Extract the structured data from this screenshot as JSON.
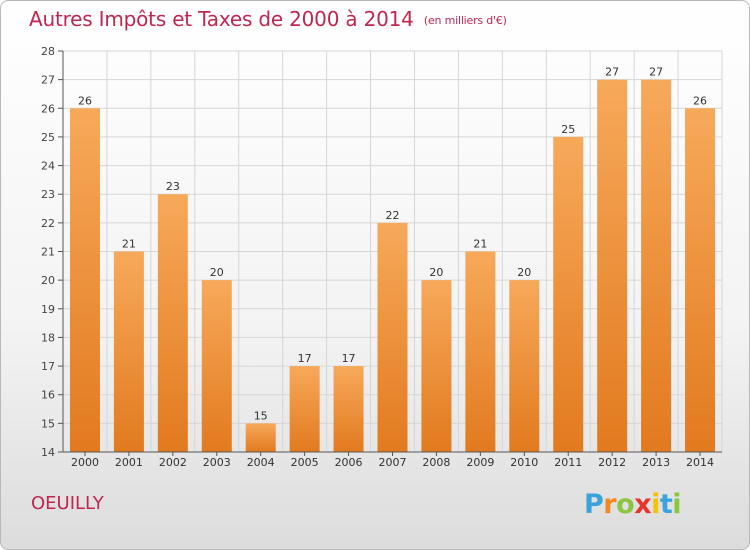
{
  "title": "Autres Impôts et Taxes de 2000 à 2014",
  "subtitle": "(en milliers d'€)",
  "commune": "OEUILLY",
  "logo": {
    "letters": [
      "P",
      "r",
      "o",
      "x",
      "i",
      "t",
      "i"
    ],
    "colors": [
      "#3aa3dc",
      "#f08a1d",
      "#8cc63f",
      "#e8322c",
      "#f5c200",
      "#3aa3dc",
      "#8cc63f"
    ]
  },
  "colors": {
    "accent": "#c1264f",
    "bar_light": "#f7a95a",
    "bar_dark": "#e27a1f",
    "axis": "#555555"
  },
  "chart_data": {
    "type": "bar",
    "categories": [
      "2000",
      "2001",
      "2002",
      "2003",
      "2004",
      "2005",
      "2006",
      "2007",
      "2008",
      "2009",
      "2010",
      "2011",
      "2012",
      "2013",
      "2014"
    ],
    "values": [
      26,
      21,
      23,
      20,
      15,
      17,
      17,
      22,
      20,
      21,
      20,
      25,
      27,
      27,
      26
    ],
    "data_labels": [
      "26",
      "21",
      "23",
      "20",
      "15",
      "17",
      "17",
      "22",
      "20",
      "21",
      "20",
      "25",
      "27",
      "27",
      "26"
    ],
    "yticks": [
      "14",
      "15",
      "16",
      "17",
      "18",
      "19",
      "20",
      "21",
      "22",
      "23",
      "24",
      "25",
      "26",
      "27",
      "28"
    ],
    "ylim": [
      14,
      28
    ],
    "grid": true,
    "xlabel": "",
    "ylabel": ""
  }
}
